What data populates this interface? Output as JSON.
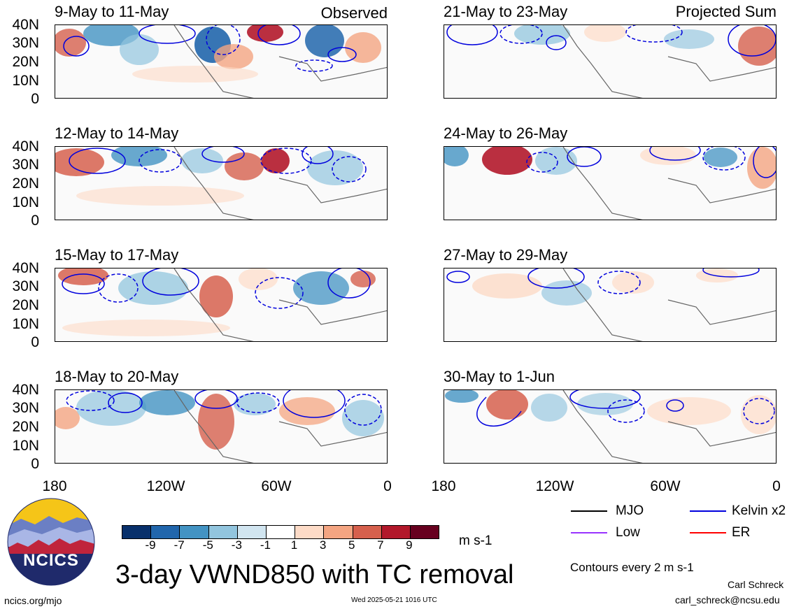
{
  "panels": [
    {
      "title": "9-May to 11-May"
    },
    {
      "title": "12-May to 14-May"
    },
    {
      "title": "15-May to 17-May"
    },
    {
      "title": "18-May to 20-May"
    },
    {
      "title": "21-May to 23-May"
    },
    {
      "title": "24-May to 26-May"
    },
    {
      "title": "27-May to 29-May"
    },
    {
      "title": "30-May to 1-Jun"
    }
  ],
  "labels": {
    "observed": "Observed",
    "projected": "Projected Sum"
  },
  "lat_ticks": [
    "40N",
    "30N",
    "20N",
    "10N",
    "0"
  ],
  "lon_ticks": [
    "180",
    "120W",
    "60W",
    "0"
  ],
  "colorbar": {
    "colors": [
      "#08306b",
      "#2166ac",
      "#4393c3",
      "#92c5de",
      "#d1e5f0",
      "#ffffff",
      "#fddbc7",
      "#f4a582",
      "#d6604d",
      "#b2182b",
      "#67001f"
    ],
    "labels": [
      "-9",
      "-7",
      "-5",
      "-3",
      "-1",
      "1",
      "3",
      "5",
      "7",
      "9"
    ],
    "unit": "m s-1"
  },
  "title": "3-day VWND850 with TC removal",
  "legend": {
    "items": [
      {
        "label": "MJO",
        "color": "#000000"
      },
      {
        "label": "Kelvin x2",
        "color": "#0000dd"
      },
      {
        "label": "Low",
        "color": "#9933ff"
      },
      {
        "label": "ER",
        "color": "#ff0000"
      }
    ],
    "contour_note": "Contours every 2 m s-1"
  },
  "logo": {
    "text": "NCICS"
  },
  "footer": {
    "url": "ncics.org/mjo",
    "timestamp": "Wed 2025-05-21 1016 UTC",
    "author": "Carl Schreck",
    "email": "carl_schreck@ncsu.edu"
  }
}
